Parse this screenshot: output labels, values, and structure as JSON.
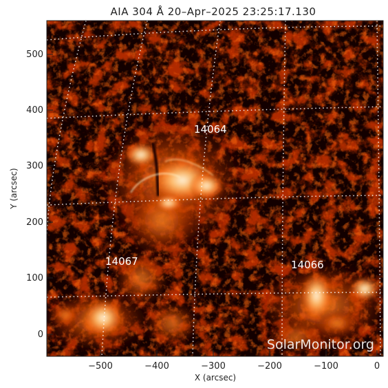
{
  "title": "AIA 304 Å 20–Apr–2025 23:25:17.130",
  "axes": {
    "xlabel": "X (arcsec)",
    "ylabel": "Y (arcsec)",
    "xticks": [
      "−500",
      "−400",
      "−300",
      "−200",
      "−100",
      "0"
    ],
    "yticks": [
      "0",
      "100",
      "200",
      "300",
      "400",
      "500"
    ]
  },
  "regions": [
    {
      "label": "14064"
    },
    {
      "label": "14067"
    },
    {
      "label": "14066"
    }
  ],
  "watermark": "SolarMonitor.org",
  "colors": {
    "background": "#130000",
    "plasma_dim": "#5a0d00",
    "plasma_mid": "#c23a00",
    "plasma_bright": "#ff9a30",
    "plasma_core": "#fff2d8",
    "grid": "#ffffff"
  }
}
